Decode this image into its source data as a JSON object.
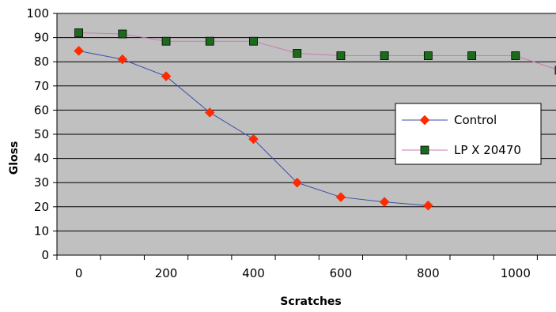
{
  "chart_data": {
    "type": "line",
    "title": "",
    "xlabel": "Scratches",
    "ylabel": "Gloss",
    "xlim": [
      -50,
      1100
    ],
    "ylim": [
      0,
      100
    ],
    "y_ticks": [
      0,
      10,
      20,
      30,
      40,
      50,
      60,
      70,
      80,
      90,
      100
    ],
    "x_tick_labels": [
      "0",
      "200",
      "400",
      "600",
      "800",
      "1000"
    ],
    "x_tick_values": [
      0,
      200,
      400,
      600,
      800,
      1000
    ],
    "x_minor_ticks": [
      -50,
      50,
      150,
      250,
      350,
      450,
      550,
      650,
      750,
      850,
      950,
      1050
    ],
    "grid": "horizontal",
    "plot_background": "#c0c0c0",
    "legend": {
      "placement": "right-middle"
    },
    "series": [
      {
        "name": "Control",
        "marker": "diamond",
        "color": "#ff2a00",
        "line_color": "#3b4ea8",
        "x": [
          0,
          100,
          200,
          300,
          400,
          500,
          600,
          700,
          800
        ],
        "y": [
          84.5,
          81,
          74,
          59,
          48,
          30,
          24,
          22,
          20.5
        ]
      },
      {
        "name": "LP X 20470",
        "marker": "square",
        "color": "#1c6a1c",
        "line_color": "#c97ab8",
        "x": [
          0,
          100,
          200,
          300,
          400,
          500,
          600,
          700,
          800,
          900,
          1000,
          1100
        ],
        "y": [
          92,
          91.5,
          88.5,
          88.5,
          88.5,
          83.5,
          82.5,
          82.5,
          82.5,
          82.5,
          82.5,
          76.5
        ]
      }
    ]
  }
}
